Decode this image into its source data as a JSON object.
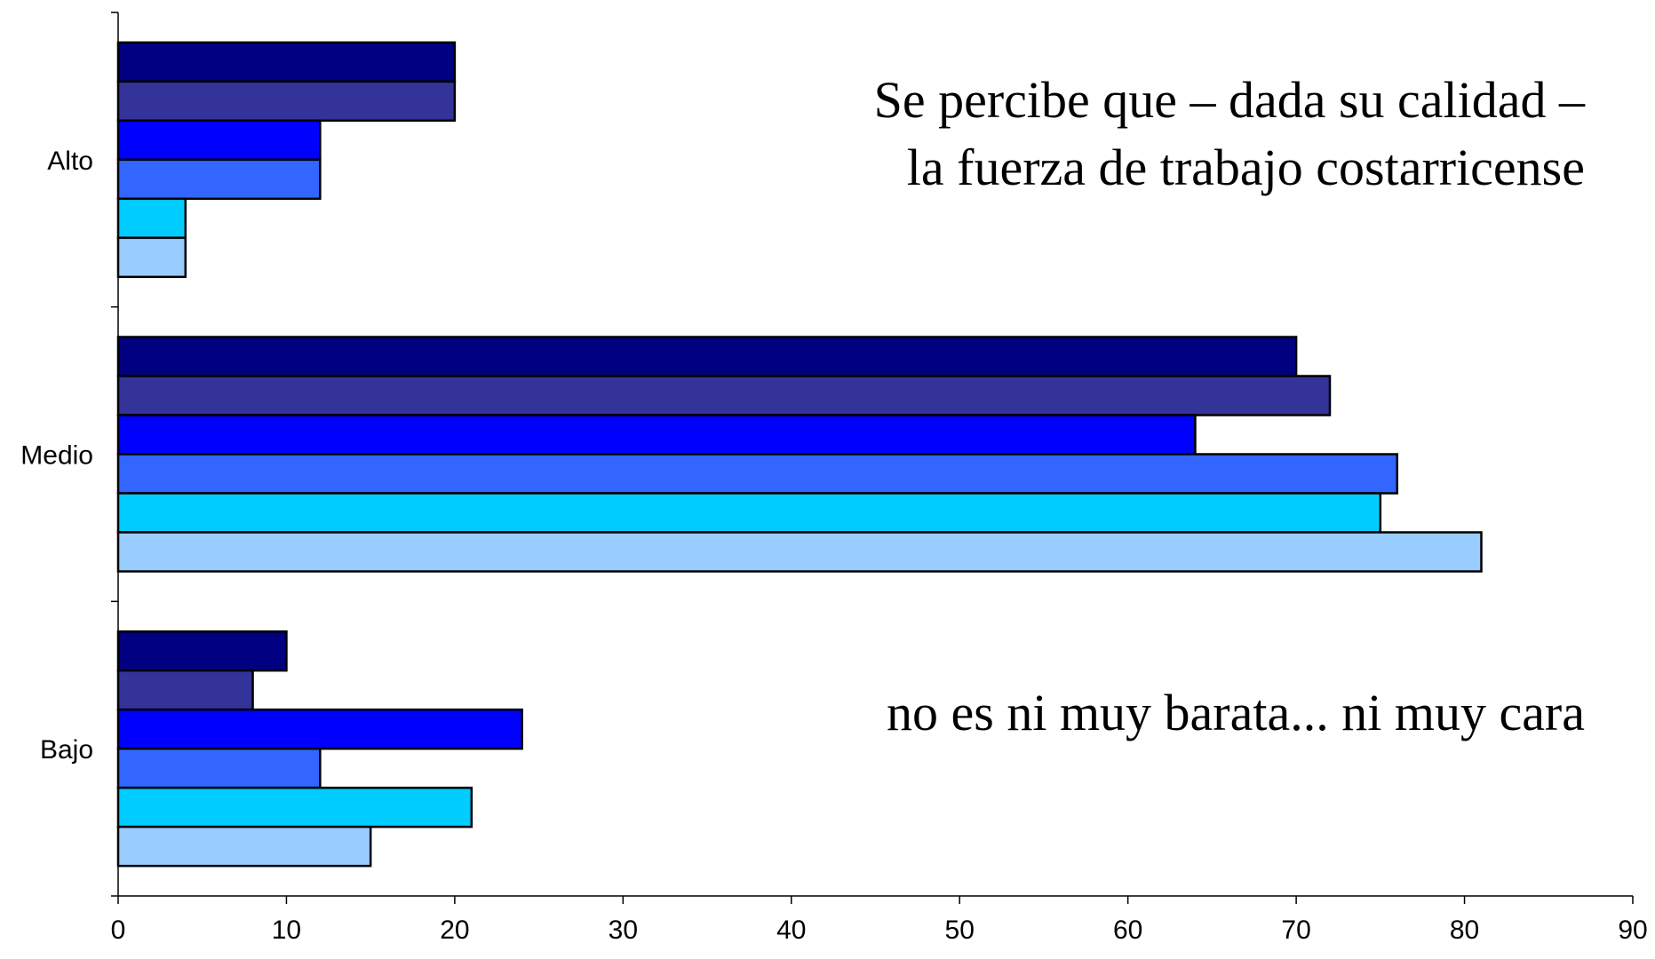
{
  "chart_data": {
    "type": "bar",
    "orientation": "horizontal",
    "categories": [
      "Alto",
      "Medio",
      "Bajo"
    ],
    "series": [
      {
        "color": "#000080",
        "values": [
          20,
          70,
          10
        ]
      },
      {
        "color": "#333399",
        "values": [
          20,
          72,
          8
        ]
      },
      {
        "color": "#0000ff",
        "values": [
          12,
          64,
          24
        ]
      },
      {
        "color": "#3366ff",
        "values": [
          12,
          76,
          12
        ]
      },
      {
        "color": "#00ccff",
        "values": [
          4,
          75,
          21
        ]
      },
      {
        "color": "#99ccff",
        "values": [
          4,
          81,
          15
        ]
      }
    ],
    "xlim": [
      0,
      90
    ],
    "xticks": [
      0,
      10,
      20,
      30,
      40,
      50,
      60,
      70,
      80,
      90
    ],
    "grid": false,
    "annotations": [
      "Se percibe que – dada su calidad –",
      "la fuerza de trabajo costarricense",
      "no es ni muy barata...  ni muy cara"
    ]
  }
}
